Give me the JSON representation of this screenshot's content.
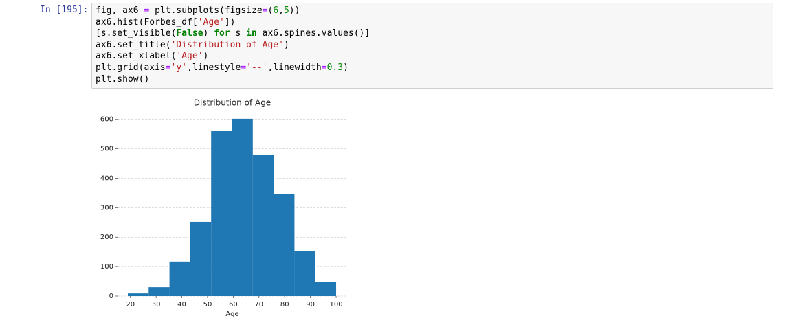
{
  "prompt": "In [195]:",
  "code": [
    "fig, ax6 = plt.subplots(figsize=(6,5))",
    "ax6.hist(Forbes_df['Age'])",
    "[s.set_visible(False) for s in ax6.spines.values()]",
    "ax6.set_title('Distribution of Age')",
    "ax6.set_xlabel('Age')",
    "plt.grid(axis='y',linestyle='--',linewidth=0.3)",
    "plt.show()"
  ],
  "chart_data": {
    "type": "histogram",
    "title": "Distribution of Age",
    "x_label": "Age",
    "bins": [
      19,
      27.1,
      35.2,
      43.3,
      51.4,
      59.5,
      67.6,
      75.7,
      83.8,
      91.9,
      100
    ],
    "values": [
      9,
      30,
      117,
      252,
      560,
      602,
      479,
      346,
      152,
      47
    ],
    "color": "#1f77b4",
    "xlim": [
      15,
      104
    ],
    "xticks": [
      20,
      30,
      40,
      50,
      60,
      70,
      80,
      90,
      100
    ],
    "ylim": [
      0,
      632
    ],
    "yticks": [
      0,
      100,
      200,
      300,
      400,
      500,
      600
    ],
    "grid": "y"
  }
}
